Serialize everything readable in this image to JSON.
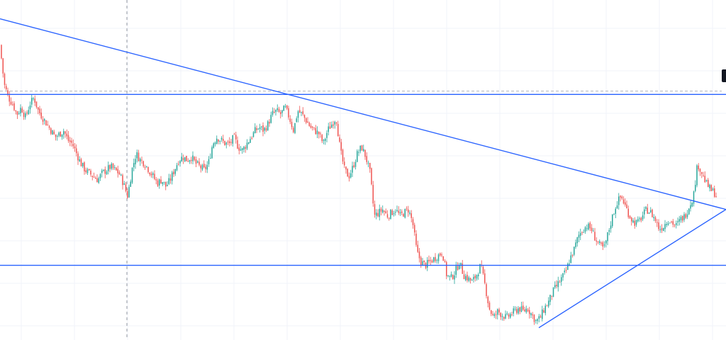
{
  "chart_data": {
    "type": "candlestick",
    "title": "",
    "xlabel": "",
    "ylabel": "",
    "ylim": [
      0,
      100
    ],
    "grid": true,
    "price_line": 74,
    "crosshair_x_fraction": 0.175,
    "close_path": [
      [
        0,
        88
      ],
      [
        6,
        76
      ],
      [
        12,
        72
      ],
      [
        18,
        70
      ],
      [
        24,
        67
      ],
      [
        30,
        69
      ],
      [
        36,
        66
      ],
      [
        42,
        70
      ],
      [
        48,
        72
      ],
      [
        54,
        68
      ],
      [
        60,
        66
      ],
      [
        66,
        64
      ],
      [
        72,
        62
      ],
      [
        78,
        60
      ],
      [
        84,
        61
      ],
      [
        90,
        62
      ],
      [
        96,
        59
      ],
      [
        102,
        58
      ],
      [
        108,
        55
      ],
      [
        114,
        52
      ],
      [
        120,
        50
      ],
      [
        126,
        49
      ],
      [
        132,
        48
      ],
      [
        138,
        47
      ],
      [
        144,
        49
      ],
      [
        150,
        50
      ],
      [
        156,
        51
      ],
      [
        162,
        50
      ],
      [
        168,
        49
      ],
      [
        174,
        46
      ],
      [
        180,
        42
      ],
      [
        186,
        50
      ],
      [
        192,
        55
      ],
      [
        198,
        53
      ],
      [
        204,
        52
      ],
      [
        210,
        50
      ],
      [
        216,
        48
      ],
      [
        222,
        46
      ],
      [
        228,
        47
      ],
      [
        234,
        45
      ],
      [
        240,
        47
      ],
      [
        246,
        50
      ],
      [
        252,
        53
      ],
      [
        258,
        54
      ],
      [
        264,
        53
      ],
      [
        270,
        54
      ],
      [
        276,
        52
      ],
      [
        282,
        51
      ],
      [
        288,
        50
      ],
      [
        294,
        52
      ],
      [
        300,
        58
      ],
      [
        306,
        60
      ],
      [
        312,
        59
      ],
      [
        318,
        58
      ],
      [
        324,
        58
      ],
      [
        330,
        60
      ],
      [
        336,
        57
      ],
      [
        342,
        56
      ],
      [
        348,
        58
      ],
      [
        354,
        60
      ],
      [
        360,
        62
      ],
      [
        366,
        63
      ],
      [
        372,
        62
      ],
      [
        378,
        64
      ],
      [
        384,
        67
      ],
      [
        390,
        68
      ],
      [
        396,
        67
      ],
      [
        402,
        69
      ],
      [
        408,
        66
      ],
      [
        414,
        62
      ],
      [
        420,
        68
      ],
      [
        426,
        67
      ],
      [
        432,
        65
      ],
      [
        438,
        63
      ],
      [
        444,
        62
      ],
      [
        450,
        61
      ],
      [
        456,
        58
      ],
      [
        462,
        62
      ],
      [
        468,
        64
      ],
      [
        474,
        66
      ],
      [
        480,
        56
      ],
      [
        486,
        50
      ],
      [
        492,
        48
      ],
      [
        498,
        51
      ],
      [
        504,
        55
      ],
      [
        510,
        57
      ],
      [
        516,
        54
      ],
      [
        522,
        49
      ],
      [
        528,
        36
      ],
      [
        534,
        37
      ],
      [
        540,
        38
      ],
      [
        546,
        36
      ],
      [
        552,
        37
      ],
      [
        558,
        38
      ],
      [
        564,
        36
      ],
      [
        570,
        37
      ],
      [
        576,
        38
      ],
      [
        582,
        34
      ],
      [
        588,
        25
      ],
      [
        594,
        22
      ],
      [
        600,
        21
      ],
      [
        606,
        22
      ],
      [
        612,
        23
      ],
      [
        618,
        24
      ],
      [
        624,
        25
      ],
      [
        630,
        18
      ],
      [
        636,
        17
      ],
      [
        642,
        19
      ],
      [
        648,
        22
      ],
      [
        654,
        18
      ],
      [
        660,
        17
      ],
      [
        666,
        16
      ],
      [
        672,
        18
      ],
      [
        678,
        21
      ],
      [
        684,
        15
      ],
      [
        690,
        8
      ],
      [
        696,
        5
      ],
      [
        702,
        7
      ],
      [
        708,
        6
      ],
      [
        714,
        5
      ],
      [
        720,
        6
      ],
      [
        726,
        7
      ],
      [
        732,
        8
      ],
      [
        738,
        7
      ],
      [
        744,
        8
      ],
      [
        750,
        6
      ],
      [
        756,
        4
      ],
      [
        762,
        5
      ],
      [
        768,
        8
      ],
      [
        774,
        10
      ],
      [
        780,
        13
      ],
      [
        786,
        15
      ],
      [
        792,
        17
      ],
      [
        798,
        19
      ],
      [
        804,
        23
      ],
      [
        810,
        26
      ],
      [
        816,
        30
      ],
      [
        822,
        32
      ],
      [
        828,
        33
      ],
      [
        834,
        32
      ],
      [
        840,
        29
      ],
      [
        846,
        27
      ],
      [
        852,
        26
      ],
      [
        858,
        31
      ],
      [
        864,
        36
      ],
      [
        870,
        40
      ],
      [
        876,
        42
      ],
      [
        882,
        39
      ],
      [
        888,
        36
      ],
      [
        894,
        34
      ],
      [
        900,
        34
      ],
      [
        906,
        36
      ],
      [
        912,
        38
      ],
      [
        918,
        37
      ],
      [
        924,
        35
      ],
      [
        930,
        32
      ],
      [
        936,
        33
      ],
      [
        942,
        35
      ],
      [
        948,
        34
      ],
      [
        954,
        33
      ],
      [
        960,
        35
      ],
      [
        966,
        36
      ],
      [
        972,
        39
      ],
      [
        978,
        42
      ],
      [
        984,
        52
      ],
      [
        990,
        49
      ],
      [
        996,
        46
      ],
      [
        1002,
        44
      ],
      [
        1008,
        43
      ],
      [
        1012,
        41
      ]
    ],
    "trendlines": [
      {
        "name": "descending-resistance",
        "from": [
          0,
          96
        ],
        "to": [
          1024,
          38
        ]
      },
      {
        "name": "ascending-support",
        "from": [
          760,
          2
        ],
        "to": [
          1024,
          38
        ]
      },
      {
        "name": "horizontal-resistance",
        "from": [
          0,
          73
        ],
        "to": [
          1024,
          73
        ]
      },
      {
        "name": "horizontal-support",
        "from": [
          0,
          21
        ],
        "to": [
          1024,
          21
        ]
      }
    ],
    "colors": {
      "up": "#26a69a",
      "down": "#ef5350",
      "trendline": "#2962ff",
      "grid": "#f0f3fa",
      "crosshair": "#9598a1",
      "price_line": "#b2b5be",
      "background": "#ffffff"
    }
  }
}
